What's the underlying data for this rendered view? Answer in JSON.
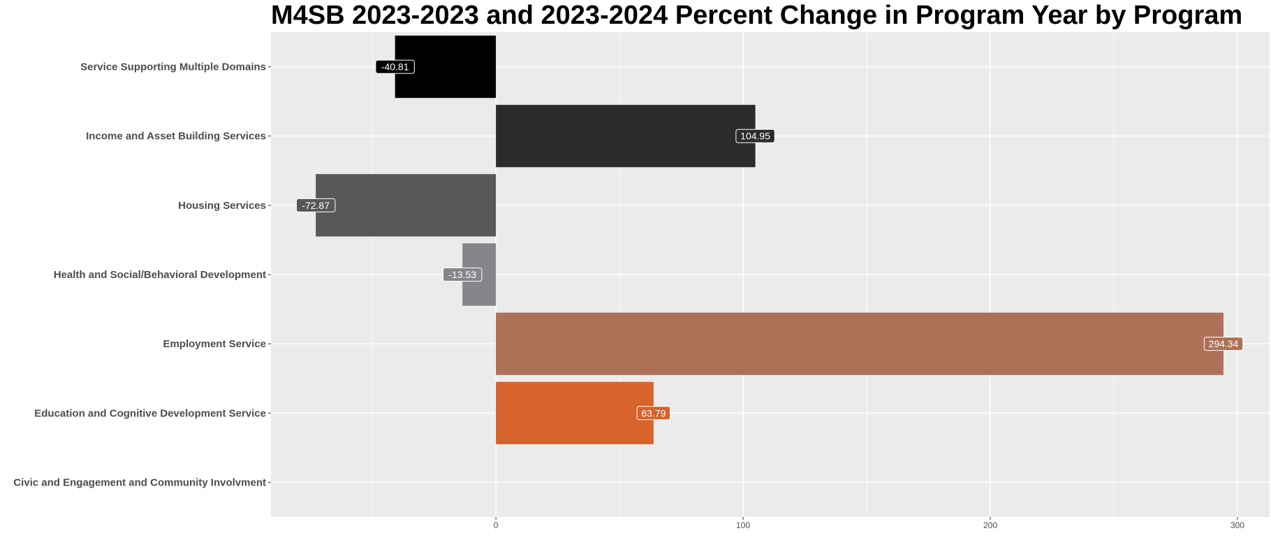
{
  "chart_data": {
    "type": "bar",
    "orientation": "horizontal",
    "title": "M4SB 2023-2023 and 2023-2024 Percent Change in Program Year by Program",
    "xlabel": "",
    "ylabel": "",
    "categories": [
      "Service Supporting Multiple Domains",
      "Income and Asset Building Services",
      "Housing Services",
      "Health and Social/Behavioral Development",
      "Employment Service",
      "Education and Cognitive Development Service",
      "Civic and Engagement and Community Involvment"
    ],
    "values": [
      -40.81,
      104.95,
      -72.87,
      -13.53,
      294.34,
      63.79,
      null
    ],
    "data_labels": [
      "-40.81",
      "104.95",
      "-72.87",
      "-13.53",
      "294.34",
      "63.79",
      ""
    ],
    "colors": [
      "#000000",
      "#2b2b2d",
      "#58585a",
      "#86868a",
      "#ad7158",
      "#d6622c",
      null
    ],
    "xlim": [
      -91,
      313
    ],
    "x_ticks": [
      0,
      100,
      200,
      300
    ],
    "x_tick_labels": [
      "0",
      "100",
      "200",
      "300"
    ],
    "grid": true,
    "legend": "none",
    "panel_background": "#ebebeb"
  }
}
